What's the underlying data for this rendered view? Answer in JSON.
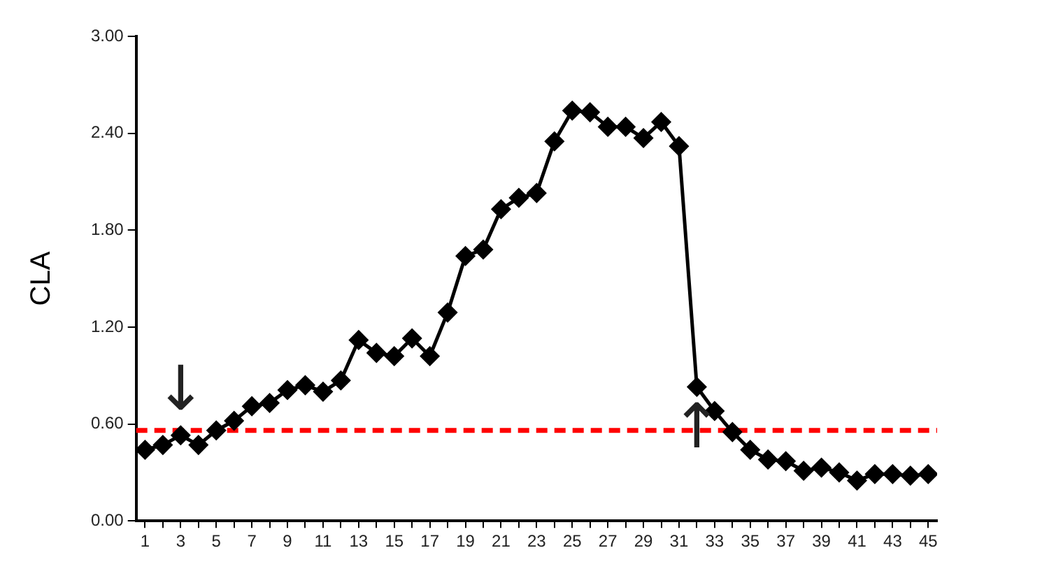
{
  "chart_data": {
    "type": "line",
    "ylabel": "CLA",
    "x": [
      1,
      2,
      3,
      4,
      5,
      6,
      7,
      8,
      9,
      10,
      11,
      12,
      13,
      14,
      15,
      16,
      17,
      18,
      19,
      20,
      21,
      22,
      23,
      24,
      25,
      26,
      27,
      28,
      29,
      30,
      31,
      32,
      33,
      34,
      35,
      36,
      37,
      38,
      39,
      40,
      41,
      42,
      43,
      44,
      45
    ],
    "series": [
      {
        "color": "#000000",
        "values": [
          0.44,
          0.47,
          0.53,
          0.47,
          0.56,
          0.62,
          0.71,
          0.73,
          0.81,
          0.84,
          0.8,
          0.87,
          1.12,
          1.04,
          1.02,
          1.13,
          1.02,
          1.29,
          1.64,
          1.68,
          1.93,
          2.0,
          2.03,
          2.35,
          2.54,
          2.53,
          2.44,
          2.44,
          2.37,
          2.47,
          2.32,
          0.83,
          0.68,
          0.55,
          0.44,
          0.38,
          0.37,
          0.31,
          0.33,
          0.3,
          0.25,
          0.29,
          0.29,
          0.28,
          0.29
        ]
      }
    ],
    "xlim": [
      0.5,
      45.5
    ],
    "xticks": [
      1,
      {
        "value": 2,
        "label": null
      },
      3,
      {
        "value": 4,
        "label": null
      },
      5,
      {
        "value": 6,
        "label": null
      },
      7,
      {
        "value": 8,
        "label": null
      },
      9,
      {
        "value": 10,
        "label": null
      },
      11,
      {
        "value": 12,
        "label": null
      },
      13,
      {
        "value": 14,
        "label": null
      },
      15,
      {
        "value": 16,
        "label": null
      },
      17,
      {
        "value": 18,
        "label": null
      },
      19,
      {
        "value": 20,
        "label": null
      },
      21,
      {
        "value": 22,
        "label": null
      },
      23,
      {
        "value": 24,
        "label": null
      },
      25,
      {
        "value": 26,
        "label": null
      },
      27,
      {
        "value": 28,
        "label": null
      },
      29,
      {
        "value": 30,
        "label": null
      },
      31,
      {
        "value": 32,
        "label": null
      },
      33,
      {
        "value": 34,
        "label": null
      },
      35,
      {
        "value": 36,
        "label": null
      },
      37,
      {
        "value": 38,
        "label": null
      },
      39,
      {
        "value": 40,
        "label": null
      },
      41,
      {
        "value": 42,
        "label": null
      },
      43,
      {
        "value": 44,
        "label": null
      },
      45
    ],
    "ylim": [
      0,
      3
    ],
    "yticks": [
      {
        "value": 0,
        "label": "0.00"
      },
      {
        "value": 0.6,
        "label": "0.60"
      },
      {
        "value": 1.2,
        "label": "1.20"
      },
      {
        "value": 1.8,
        "label": "1.80"
      },
      {
        "value": 2.4,
        "label": "2.40"
      },
      {
        "value": 3,
        "label": "3.00"
      }
    ],
    "ref_lines": [
      {
        "axis": "y",
        "value": 0.56,
        "color": "#ff0000",
        "line_style": "dashed"
      }
    ],
    "annotations": [
      {
        "text": "↓",
        "x": 3,
        "y": 0.53
      },
      {
        "text": "↑",
        "x": 32,
        "y": 0.83
      }
    ],
    "marker": "diamond",
    "line_style": "solid",
    "grid": false,
    "legend": false
  }
}
